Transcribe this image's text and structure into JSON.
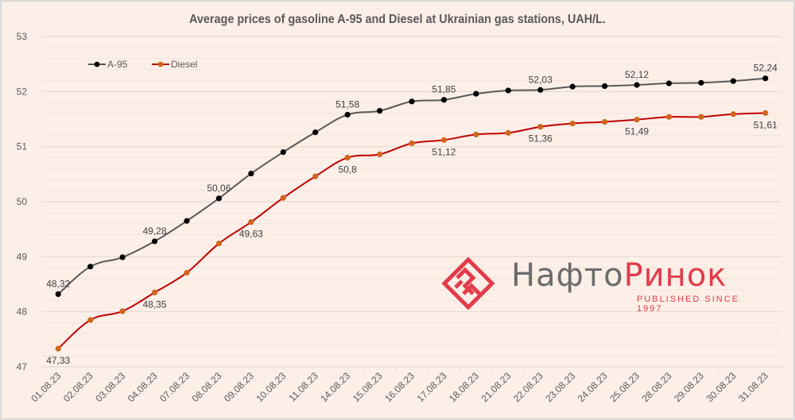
{
  "chart_data": {
    "type": "line",
    "title": "Average prices of  gasoline A-95 and Diesel at Ukrainian gas stations, UAH/L.",
    "xlabel": "",
    "ylabel": "",
    "ylim": [
      47,
      53
    ],
    "yticks": [
      47,
      48,
      49,
      50,
      51,
      52,
      53
    ],
    "grid": true,
    "legend_position": "top-left",
    "categories": [
      "01.08.23",
      "02.08.23",
      "03.08.23",
      "04.08.23",
      "07.08.23",
      "08.08.23",
      "09.08.23",
      "10.08.23",
      "11.08.23",
      "14.08.23",
      "15.08.23",
      "16.08.23",
      "17.08.23",
      "18.08.23",
      "21.08.23",
      "22.08.23",
      "23.08.23",
      "24.08.23",
      "25.08.23",
      "28.08.23",
      "29.08.23",
      "30.08.23",
      "31.08.23"
    ],
    "series": [
      {
        "name": "A-95",
        "color": "#595959",
        "marker_color": "#000000",
        "values": [
          48.32,
          48.82,
          48.99,
          49.28,
          49.65,
          50.06,
          50.51,
          50.9,
          51.26,
          51.58,
          51.65,
          51.82,
          51.85,
          51.96,
          52.02,
          52.03,
          52.09,
          52.1,
          52.12,
          52.15,
          52.16,
          52.19,
          52.24
        ],
        "data_labels": [
          {
            "index": 0,
            "text": "48,32"
          },
          {
            "index": 3,
            "text": "49,28"
          },
          {
            "index": 5,
            "text": "50,06"
          },
          {
            "index": 9,
            "text": "51,58"
          },
          {
            "index": 12,
            "text": "51,85"
          },
          {
            "index": 15,
            "text": "52,03"
          },
          {
            "index": 18,
            "text": "52,12"
          },
          {
            "index": 22,
            "text": "52,24"
          }
        ]
      },
      {
        "name": "Diesel",
        "color": "#c00000",
        "marker_color": "#d0661c",
        "values": [
          47.33,
          47.85,
          48.01,
          48.35,
          48.71,
          49.24,
          49.63,
          50.07,
          50.46,
          50.8,
          50.86,
          51.06,
          51.12,
          51.22,
          51.25,
          51.36,
          51.42,
          51.45,
          51.49,
          51.54,
          51.54,
          51.59,
          51.61
        ],
        "data_labels": [
          {
            "index": 0,
            "text": "47,33"
          },
          {
            "index": 3,
            "text": "48,35"
          },
          {
            "index": 6,
            "text": "49,63"
          },
          {
            "index": 9,
            "text": "50,8"
          },
          {
            "index": 12,
            "text": "51,12"
          },
          {
            "index": 15,
            "text": "51,36"
          },
          {
            "index": 18,
            "text": "51,49"
          },
          {
            "index": 22,
            "text": "51,61"
          }
        ]
      }
    ]
  },
  "logo": {
    "name_part1": "Нафто",
    "name_part2": "Ринок",
    "tagline": "PUBLISHED SINCE 1997"
  }
}
